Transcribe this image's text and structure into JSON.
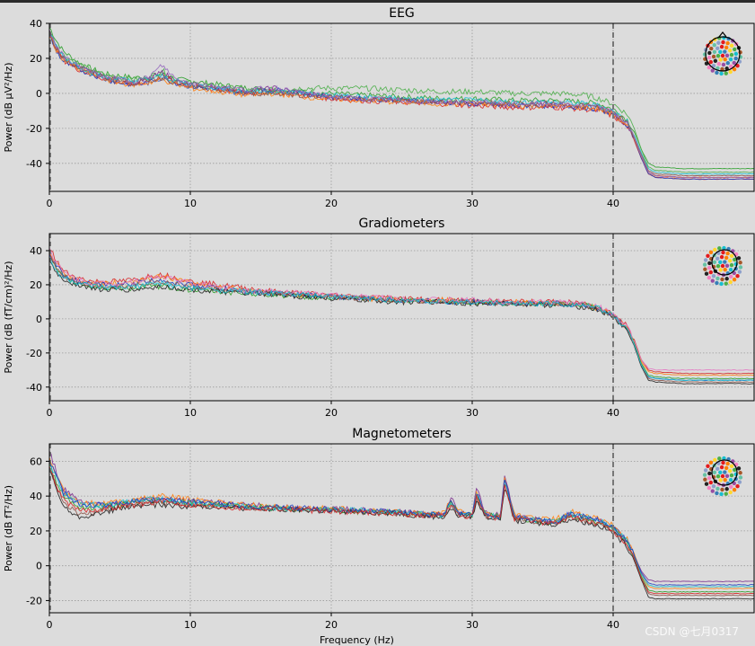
{
  "chart_data": [
    {
      "type": "line",
      "title": "EEG",
      "ylabel": "Power (dB µV²/Hz)",
      "xlabel": "",
      "xlim": [
        0,
        50
      ],
      "ylim": [
        -56,
        40
      ],
      "xticks": [
        0,
        10,
        20,
        30,
        40
      ],
      "yticks": [
        40,
        20,
        0,
        -20,
        -40
      ],
      "grid": true,
      "vline_x": 40,
      "sensor_legend": "top-right",
      "x": [
        0,
        0.5,
        1,
        2,
        3,
        4,
        5,
        6,
        7,
        8,
        9,
        10,
        12,
        14,
        16,
        18,
        20,
        22,
        25,
        28,
        30,
        33,
        36,
        38,
        39,
        40,
        41,
        41.5,
        42,
        42.5,
        43,
        45,
        48,
        50
      ],
      "series": [
        {
          "color": "#2ca02c",
          "values": [
            38,
            30,
            24,
            18,
            14,
            11,
            10,
            9,
            9,
            11,
            8,
            7,
            5,
            3,
            2,
            1,
            0,
            -1,
            -2,
            -3,
            -3,
            -4,
            -4,
            -5,
            -6,
            -9,
            -15,
            -22,
            -32,
            -40,
            -42,
            -43,
            -43,
            -43
          ]
        },
        {
          "color": "#4daf4a",
          "values": [
            36,
            28,
            22,
            17,
            13,
            10,
            9,
            8,
            9,
            13,
            8,
            6,
            4,
            2,
            2,
            3,
            3,
            3,
            2,
            1,
            1,
            0,
            0,
            -1,
            -3,
            -6,
            -12,
            -20,
            -32,
            -42,
            -44,
            -45,
            -45,
            -45
          ]
        },
        {
          "color": "#7b2d8e",
          "values": [
            35,
            26,
            20,
            15,
            12,
            9,
            7,
            6,
            8,
            12,
            7,
            5,
            3,
            1,
            3,
            0,
            -2,
            -3,
            -4,
            -5,
            -6,
            -7,
            -7,
            -8,
            -9,
            -12,
            -18,
            -26,
            -36,
            -45,
            -47,
            -48,
            -48,
            -48
          ]
        },
        {
          "color": "#d62728",
          "values": [
            34,
            25,
            19,
            14,
            11,
            8,
            6,
            5,
            7,
            10,
            6,
            4,
            2,
            0,
            1,
            -1,
            -3,
            -4,
            -5,
            -6,
            -7,
            -8,
            -8,
            -9,
            -10,
            -13,
            -19,
            -27,
            -37,
            -46,
            -48,
            -49,
            -49,
            -49
          ]
        },
        {
          "color": "#1f3fbf",
          "values": [
            33,
            24,
            18,
            14,
            11,
            8,
            6,
            5,
            6,
            9,
            6,
            4,
            2,
            0,
            2,
            0,
            -2,
            -3,
            -4,
            -5,
            -6,
            -7,
            -7,
            -8,
            -9,
            -12,
            -18,
            -26,
            -37,
            -46,
            -48,
            -49,
            -49,
            -49
          ]
        },
        {
          "color": "#ff7f0e",
          "values": [
            33,
            25,
            19,
            14,
            11,
            8,
            6,
            5,
            6,
            8,
            5,
            3,
            1,
            -1,
            0,
            -2,
            -3,
            -4,
            -5,
            -6,
            -6,
            -7,
            -7,
            -8,
            -9,
            -12,
            -18,
            -26,
            -36,
            -45,
            -47,
            -48,
            -48,
            -48
          ]
        },
        {
          "color": "#17becf",
          "values": [
            35,
            27,
            21,
            16,
            12,
            9,
            8,
            7,
            8,
            10,
            7,
            5,
            3,
            1,
            1,
            0,
            -1,
            -2,
            -3,
            -4,
            -4,
            -5,
            -5,
            -6,
            -7,
            -10,
            -16,
            -24,
            -34,
            -43,
            -45,
            -46,
            -46,
            -46
          ]
        },
        {
          "color": "#8c564b",
          "values": [
            34,
            26,
            20,
            15,
            12,
            9,
            7,
            6,
            7,
            9,
            6,
            4,
            2,
            0,
            0,
            -1,
            -2,
            -3,
            -4,
            -5,
            -5,
            -6,
            -6,
            -7,
            -8,
            -11,
            -17,
            -25,
            -35,
            -44,
            -46,
            -47,
            -47,
            -47
          ]
        },
        {
          "color": "#9467bd",
          "values": [
            36,
            27,
            21,
            16,
            12,
            9,
            8,
            7,
            9,
            16,
            8,
            6,
            4,
            2,
            3,
            0,
            -2,
            -3,
            -4,
            -5,
            -5,
            -6,
            -6,
            -7,
            -8,
            -11,
            -17,
            -25,
            -36,
            -45,
            -47,
            -48,
            -48,
            -48
          ]
        }
      ]
    },
    {
      "type": "line",
      "title": "Gradiometers",
      "ylabel": "Power (dB (fT/cm)²/Hz)",
      "xlabel": "",
      "xlim": [
        0,
        50
      ],
      "ylim": [
        -48,
        50
      ],
      "xticks": [
        0,
        10,
        20,
        30,
        40
      ],
      "yticks": [
        40,
        20,
        0,
        -20,
        -40
      ],
      "grid": true,
      "vline_x": 40,
      "sensor_legend": "top-right",
      "x": [
        0,
        0.5,
        1,
        2,
        3,
        4,
        5,
        6,
        7,
        8,
        9,
        10,
        12,
        14,
        16,
        18,
        20,
        22,
        25,
        28,
        30,
        33,
        36,
        38,
        39,
        40,
        41,
        41.5,
        42,
        42.5,
        43,
        45,
        48,
        50
      ],
      "series": [
        {
          "color": "#d62728",
          "values": [
            42,
            34,
            28,
            24,
            22,
            22,
            22,
            23,
            25,
            26,
            24,
            22,
            20,
            18,
            16,
            15,
            14,
            13,
            12,
            11,
            11,
            10,
            10,
            9,
            7,
            3,
            -4,
            -12,
            -24,
            -30,
            -31,
            -32,
            -32,
            -32
          ]
        },
        {
          "color": "#ff7f0e",
          "values": [
            40,
            32,
            27,
            23,
            21,
            21,
            21,
            22,
            24,
            25,
            23,
            21,
            19,
            17,
            15,
            14,
            13,
            12,
            11,
            11,
            10,
            10,
            9,
            8,
            6,
            2,
            -5,
            -13,
            -25,
            -31,
            -32,
            -33,
            -33,
            -33
          ]
        },
        {
          "color": "#2ca02c",
          "values": [
            36,
            29,
            24,
            21,
            19,
            18,
            18,
            18,
            19,
            19,
            18,
            17,
            16,
            15,
            14,
            13,
            12,
            12,
            11,
            10,
            10,
            9,
            9,
            8,
            6,
            2,
            -5,
            -14,
            -26,
            -33,
            -34,
            -35,
            -35,
            -35
          ]
        },
        {
          "color": "#1f3fbf",
          "values": [
            38,
            31,
            26,
            22,
            20,
            20,
            20,
            21,
            22,
            23,
            21,
            20,
            18,
            16,
            15,
            14,
            13,
            12,
            11,
            10,
            10,
            9,
            9,
            8,
            6,
            2,
            -6,
            -15,
            -27,
            -34,
            -35,
            -36,
            -36,
            -36
          ]
        },
        {
          "color": "#222222",
          "values": [
            34,
            27,
            23,
            20,
            18,
            17,
            17,
            17,
            18,
            19,
            18,
            17,
            16,
            15,
            14,
            13,
            12,
            11,
            10,
            10,
            9,
            9,
            8,
            7,
            5,
            1,
            -7,
            -16,
            -28,
            -36,
            -37,
            -38,
            -38,
            -38
          ]
        },
        {
          "color": "#8c564b",
          "values": [
            37,
            30,
            25,
            22,
            20,
            19,
            19,
            20,
            21,
            22,
            20,
            19,
            17,
            16,
            15,
            14,
            13,
            12,
            11,
            10,
            10,
            9,
            9,
            8,
            6,
            2,
            -6,
            -15,
            -27,
            -35,
            -36,
            -37,
            -37,
            -37
          ]
        },
        {
          "color": "#e377c2",
          "values": [
            41,
            33,
            27,
            23,
            21,
            21,
            21,
            22,
            24,
            25,
            23,
            21,
            19,
            17,
            16,
            15,
            14,
            13,
            12,
            11,
            11,
            10,
            10,
            9,
            7,
            3,
            -5,
            -13,
            -24,
            -29,
            -30,
            -30,
            -30,
            -30
          ]
        },
        {
          "color": "#17becf",
          "values": [
            35,
            28,
            24,
            21,
            19,
            18,
            18,
            19,
            20,
            21,
            19,
            18,
            17,
            16,
            15,
            14,
            13,
            12,
            11,
            10,
            10,
            9,
            9,
            8,
            6,
            2,
            -6,
            -15,
            -27,
            -34,
            -35,
            -36,
            -36,
            -36
          ]
        }
      ]
    },
    {
      "type": "line",
      "title": "Magnetometers",
      "ylabel": "Power (dB fT²/Hz)",
      "xlabel": "Frequency (Hz)",
      "xlim": [
        0,
        50
      ],
      "ylim": [
        -27,
        70
      ],
      "xticks": [
        0,
        10,
        20,
        30,
        40
      ],
      "yticks": [
        60,
        40,
        20,
        0,
        -20
      ],
      "grid": true,
      "vline_x": 40,
      "sensor_legend": "top-right",
      "x": [
        0,
        0.5,
        1,
        2,
        3,
        4,
        5,
        6,
        7,
        8,
        10,
        12,
        14,
        16,
        18,
        20,
        22,
        24,
        25,
        26,
        28,
        28.5,
        29,
        30,
        30.3,
        31,
        32,
        32.3,
        33,
        34,
        35,
        36,
        37,
        38,
        39,
        40,
        41,
        41.5,
        42,
        42.5,
        43,
        45,
        48,
        50
      ],
      "series": [
        {
          "color": "#7b2d8e",
          "values": [
            66,
            54,
            44,
            38,
            35,
            35,
            36,
            37,
            38,
            38,
            37,
            36,
            35,
            34,
            33,
            33,
            32,
            31,
            31,
            30,
            30,
            40,
            31,
            30,
            44,
            30,
            29,
            52,
            28,
            27,
            26,
            26,
            30,
            28,
            26,
            22,
            14,
            6,
            -3,
            -8,
            -9,
            -9,
            -9,
            -9
          ]
        },
        {
          "color": "#ff7f0e",
          "values": [
            62,
            52,
            43,
            37,
            36,
            36,
            37,
            38,
            39,
            40,
            38,
            37,
            35,
            34,
            33,
            33,
            32,
            31,
            31,
            30,
            30,
            38,
            31,
            30,
            42,
            30,
            29,
            50,
            29,
            28,
            27,
            27,
            31,
            29,
            27,
            23,
            15,
            7,
            -5,
            -12,
            -13,
            -13,
            -13,
            -13
          ]
        },
        {
          "color": "#2ca02c",
          "values": [
            58,
            48,
            40,
            34,
            33,
            34,
            35,
            36,
            37,
            37,
            36,
            35,
            34,
            33,
            32,
            32,
            31,
            31,
            30,
            30,
            29,
            36,
            30,
            29,
            40,
            29,
            28,
            48,
            27,
            26,
            25,
            25,
            29,
            27,
            25,
            21,
            13,
            5,
            -6,
            -14,
            -15,
            -15,
            -15,
            -15
          ]
        },
        {
          "color": "#8c564b",
          "values": [
            56,
            46,
            36,
            30,
            30,
            32,
            34,
            35,
            36,
            36,
            35,
            34,
            33,
            33,
            32,
            32,
            31,
            30,
            30,
            29,
            29,
            34,
            29,
            28,
            38,
            28,
            27,
            46,
            27,
            26,
            25,
            25,
            28,
            26,
            24,
            20,
            12,
            4,
            -7,
            -16,
            -17,
            -17,
            -17,
            -17
          ]
        },
        {
          "color": "#222222",
          "values": [
            55,
            44,
            34,
            28,
            29,
            31,
            33,
            34,
            35,
            35,
            34,
            34,
            33,
            32,
            32,
            31,
            31,
            30,
            30,
            29,
            28,
            33,
            29,
            28,
            37,
            28,
            27,
            45,
            26,
            25,
            24,
            24,
            27,
            25,
            23,
            19,
            11,
            3,
            -8,
            -18,
            -19,
            -19,
            -19,
            -19
          ]
        },
        {
          "color": "#17becf",
          "values": [
            60,
            50,
            42,
            36,
            35,
            35,
            36,
            37,
            38,
            38,
            36,
            35,
            34,
            33,
            33,
            32,
            32,
            31,
            31,
            30,
            29,
            37,
            30,
            29,
            41,
            29,
            28,
            49,
            28,
            27,
            26,
            26,
            30,
            28,
            26,
            22,
            14,
            6,
            -5,
            -11,
            -12,
            -12,
            -12,
            -12
          ]
        },
        {
          "color": "#1f3fbf",
          "values": [
            61,
            51,
            42,
            36,
            35,
            35,
            36,
            37,
            38,
            38,
            37,
            36,
            34,
            34,
            33,
            32,
            32,
            31,
            31,
            30,
            29,
            37,
            30,
            29,
            42,
            29,
            28,
            50,
            28,
            27,
            26,
            26,
            30,
            28,
            26,
            22,
            14,
            6,
            -4,
            -10,
            -11,
            -11,
            -11,
            -11
          ]
        },
        {
          "color": "#d62728",
          "values": [
            57,
            46,
            38,
            32,
            32,
            33,
            34,
            35,
            36,
            37,
            35,
            34,
            33,
            33,
            32,
            31,
            31,
            30,
            30,
            29,
            29,
            35,
            29,
            28,
            39,
            28,
            27,
            47,
            27,
            26,
            25,
            25,
            28,
            26,
            24,
            20,
            12,
            4,
            -7,
            -15,
            -16,
            -16,
            -16,
            -16
          ]
        }
      ]
    }
  ],
  "watermark": "CSDN @七月0317"
}
